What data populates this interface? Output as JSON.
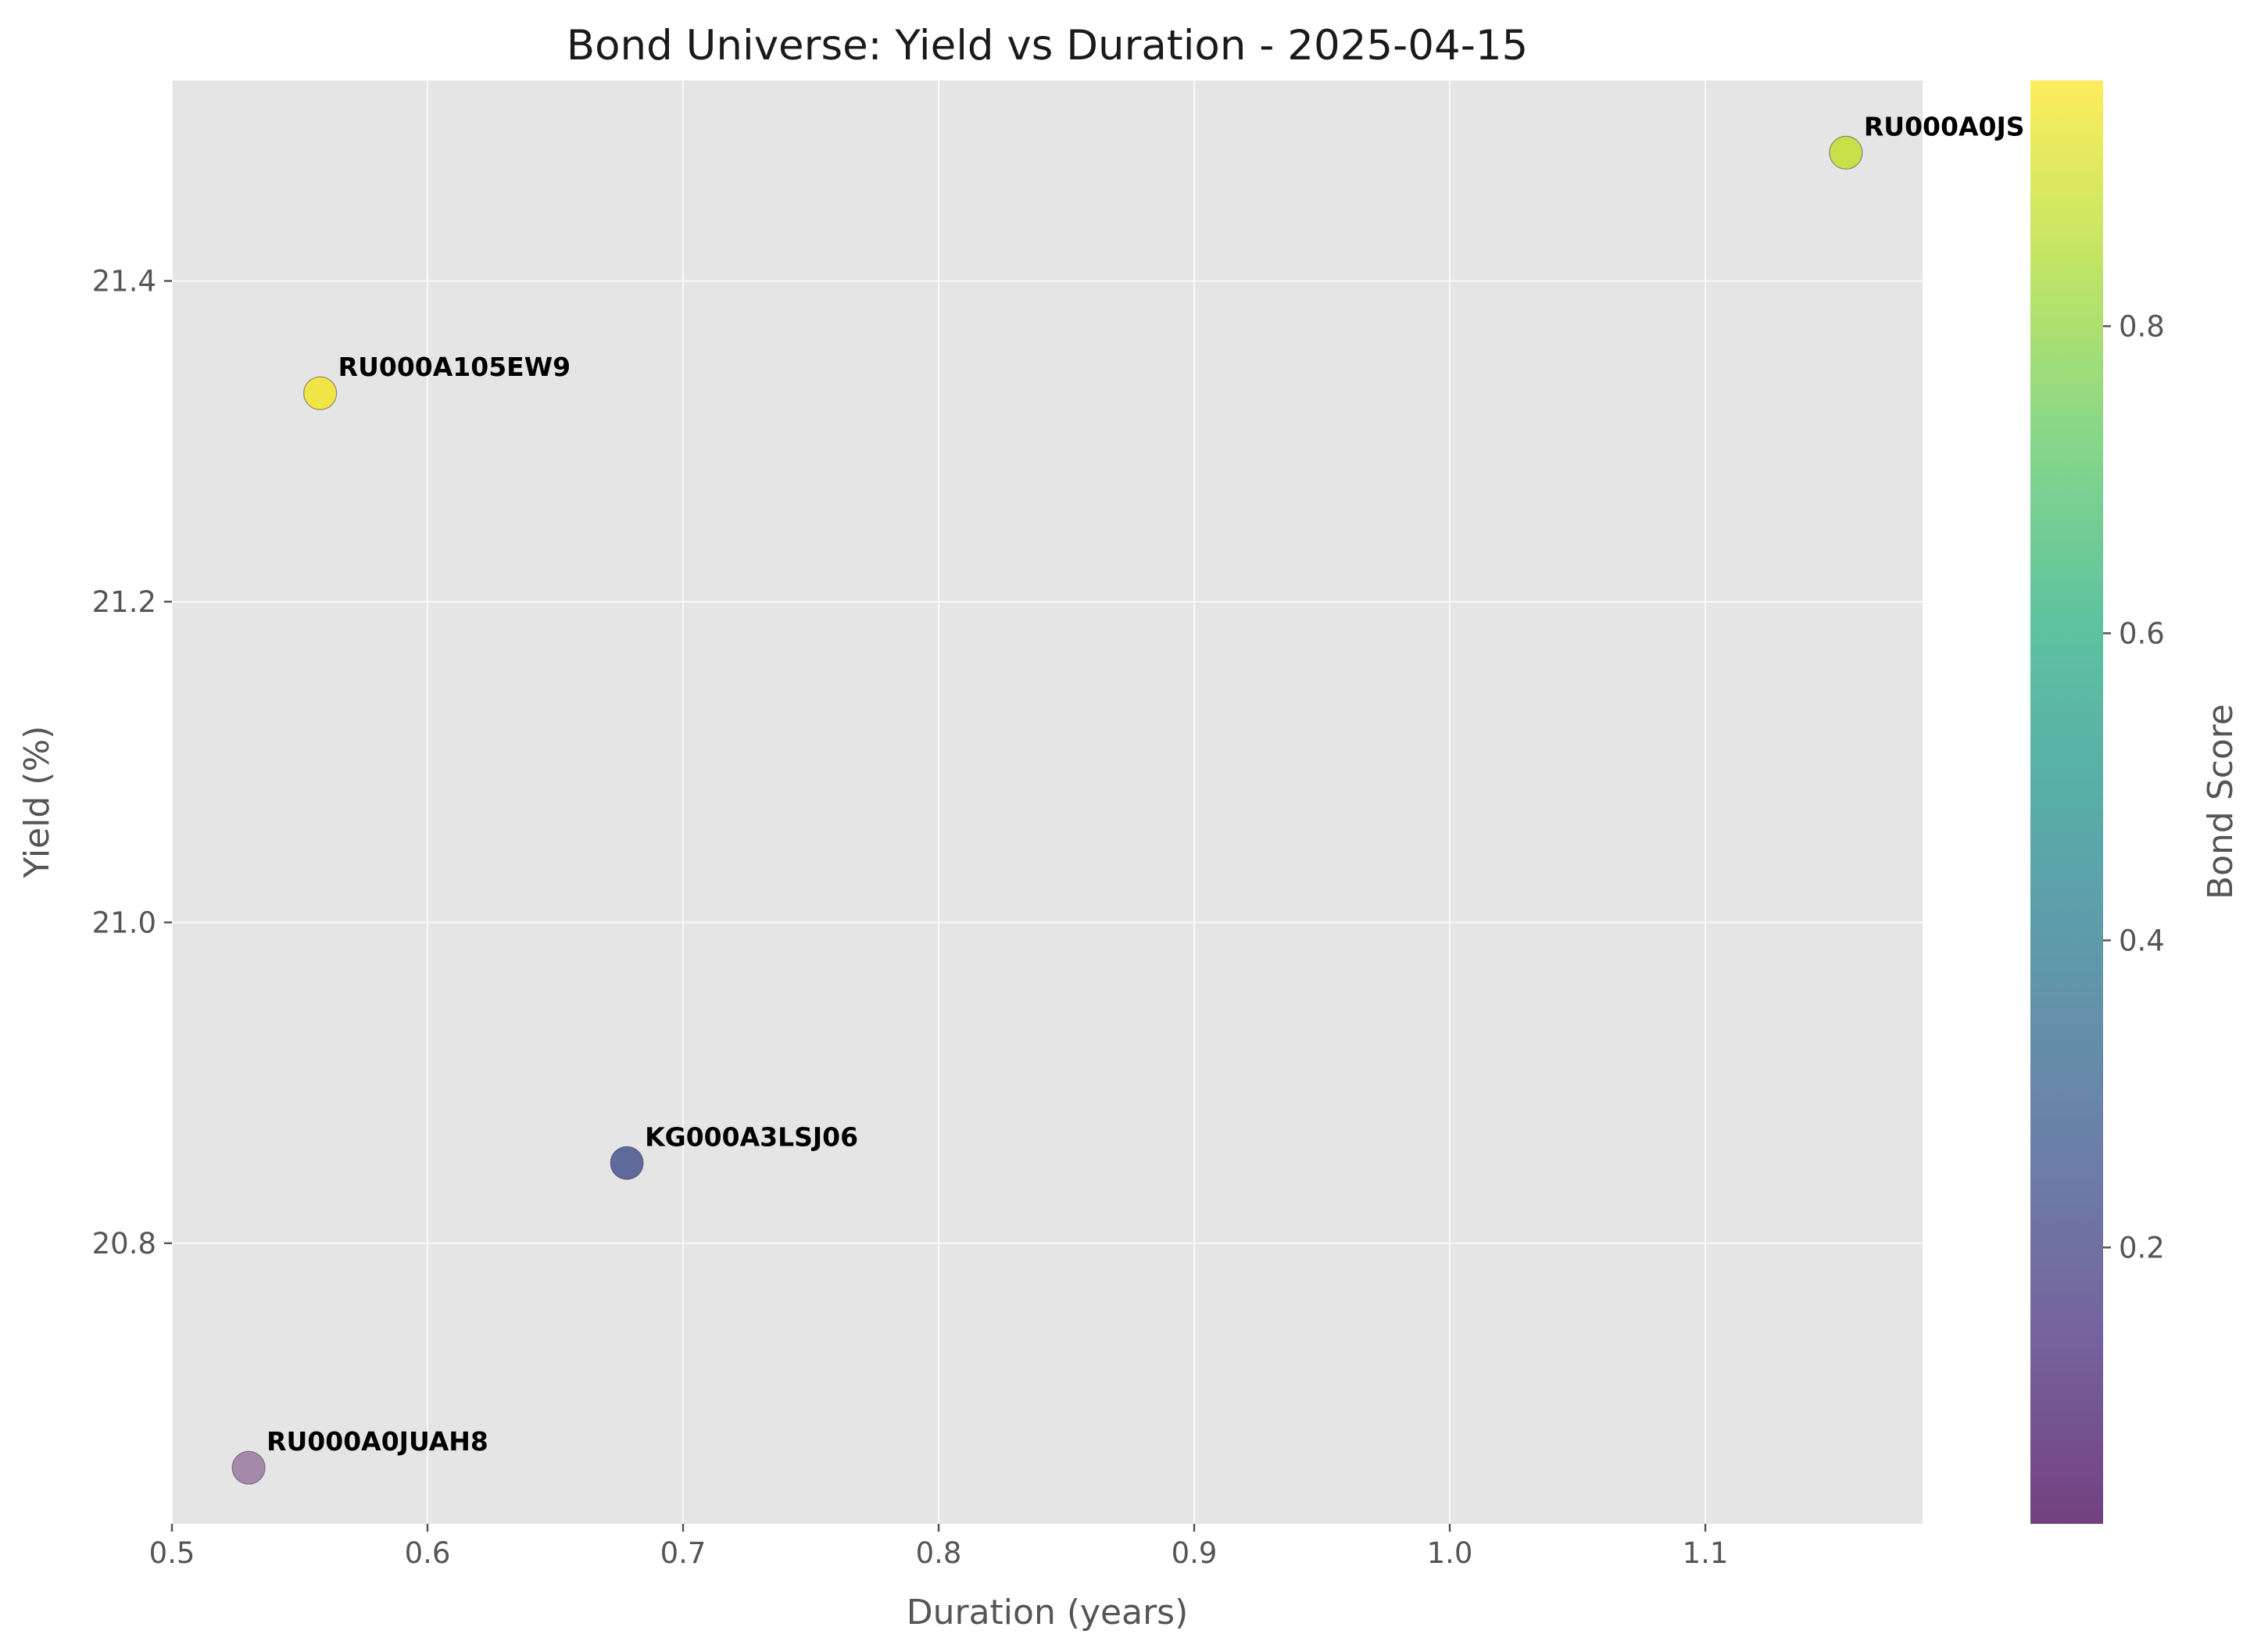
{
  "chart_data": {
    "type": "scatter",
    "title": "Bond Universe: Yield vs Duration - 2025-04-15",
    "xlabel": "Duration (years)",
    "ylabel": "Yield (%)",
    "xlim": [
      0.5,
      1.185
    ],
    "ylim": [
      20.625,
      21.525
    ],
    "xticks": [
      0.5,
      0.6,
      0.7,
      0.8,
      0.9,
      1.0,
      1.1
    ],
    "xtick_labels": [
      "0.5",
      "0.6",
      "0.7",
      "0.8",
      "0.9",
      "1.0",
      "1.1"
    ],
    "yticks": [
      20.8,
      21.0,
      21.2,
      21.4
    ],
    "ytick_labels": [
      "20.8",
      "21.0",
      "21.2",
      "21.4"
    ],
    "grid": true,
    "points": [
      {
        "label": "RU000A0JUAH8",
        "x": 0.53,
        "y": 20.66,
        "score": 0.02,
        "color": "#44015480"
      },
      {
        "label": "KG000A3LSJ06",
        "x": 0.678,
        "y": 20.85,
        "score": 0.22,
        "color": "#3e4a89"
      },
      {
        "label": "RU000A105EW9",
        "x": 0.558,
        "y": 21.33,
        "score": 0.96,
        "color": "#f2e51c"
      },
      {
        "label": "RU000A0JS",
        "x": 1.155,
        "y": 21.48,
        "score": 0.88,
        "color": "#c2df23"
      }
    ],
    "colorbar": {
      "label": "Bond Score",
      "range": [
        0.02,
        0.96
      ],
      "ticks": [
        0.2,
        0.4,
        0.6,
        0.8
      ],
      "tick_labels": [
        "0.2",
        "0.4",
        "0.6",
        "0.8"
      ],
      "colormap": "viridis"
    },
    "colors": {
      "plot_background": "#e5e5e5",
      "grid": "#ffffff"
    }
  }
}
